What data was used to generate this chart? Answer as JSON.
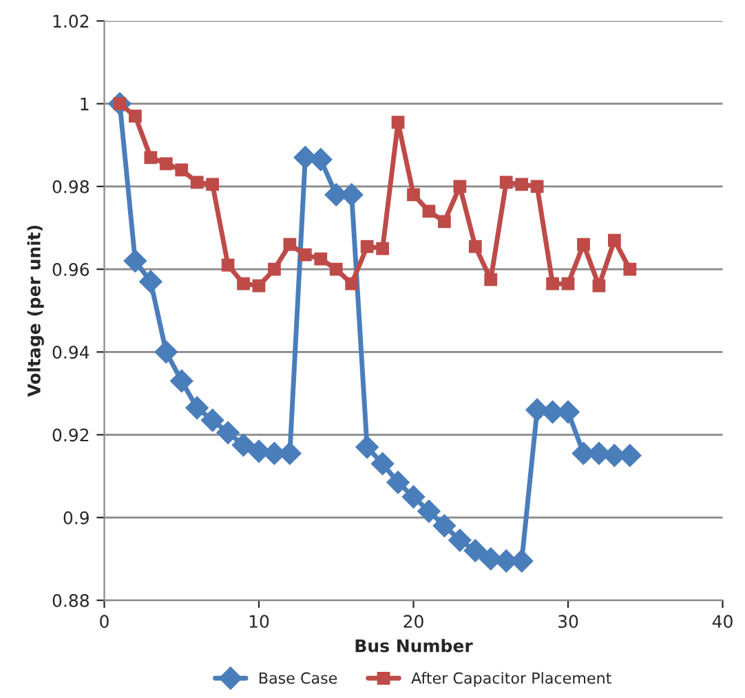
{
  "chart_data": {
    "type": "line",
    "xlabel": "Bus Number",
    "ylabel": "Voltage (per unit)",
    "x": [
      1,
      2,
      3,
      4,
      5,
      6,
      7,
      8,
      9,
      10,
      11,
      12,
      13,
      14,
      15,
      16,
      17,
      18,
      19,
      20,
      21,
      22,
      23,
      24,
      25,
      26,
      27,
      28,
      29,
      30,
      31,
      32,
      33,
      34
    ],
    "series": [
      {
        "name": "Base Case",
        "color": "#4a7ebb",
        "marker": "diamond",
        "values": [
          1.0,
          0.962,
          0.957,
          0.94,
          0.933,
          0.9265,
          0.9235,
          0.9205,
          0.9175,
          0.916,
          0.9155,
          0.9155,
          0.987,
          0.9865,
          0.978,
          0.978,
          0.917,
          0.913,
          0.9085,
          0.905,
          0.9015,
          0.898,
          0.8945,
          0.892,
          0.89,
          0.8895,
          0.8895,
          0.926,
          0.9255,
          0.9255,
          0.9155,
          0.9155,
          0.915,
          0.915
        ]
      },
      {
        "name": "After Capacitor Placement",
        "color": "#be4b48",
        "marker": "square",
        "values": [
          1.0,
          0.997,
          0.987,
          0.9855,
          0.984,
          0.981,
          0.9805,
          0.961,
          0.9565,
          0.956,
          0.96,
          0.966,
          0.9635,
          0.9625,
          0.96,
          0.9565,
          0.9655,
          0.965,
          0.9955,
          0.978,
          0.974,
          0.9715,
          0.98,
          0.9655,
          0.9575,
          0.981,
          0.9805,
          0.98,
          0.9565,
          0.9565,
          0.966,
          0.956,
          0.967,
          0.96
        ]
      }
    ],
    "xlim": [
      0,
      40
    ],
    "xticks": [
      0,
      10,
      20,
      30,
      40
    ],
    "ylim": [
      0.88,
      1.02
    ],
    "yticks": [
      0.88,
      0.9,
      0.92,
      0.94,
      0.96,
      0.98,
      1,
      1.02
    ],
    "grid": "y",
    "legend": "bottom",
    "line_style": "solid"
  }
}
